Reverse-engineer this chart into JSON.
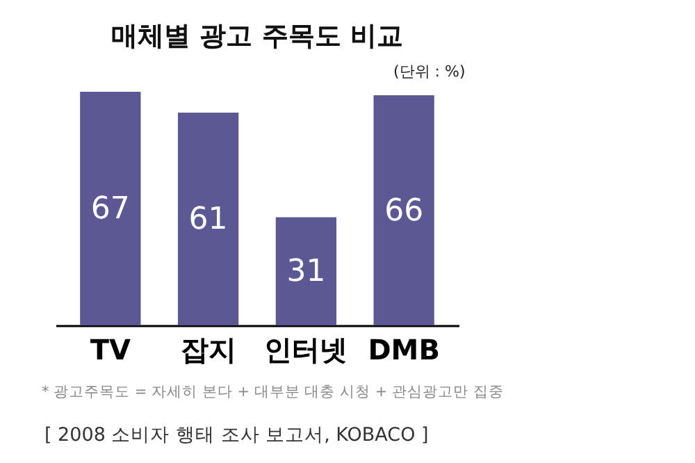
{
  "chart_data": {
    "type": "bar",
    "title": "매체별 광고 주목도 비교",
    "categories": [
      "TV",
      "잡지",
      "인터넷",
      "DMB"
    ],
    "values": [
      67,
      61,
      31,
      66
    ],
    "color": "#5b5893",
    "data_labels": true,
    "annotations": [
      "(단위 : %)",
      "* 광고주목도 = 자세히 본다 + 대부분 대충 시청 + 관심광고만 집중",
      "[ 2008 소비자 행태 조사 보고서, KOBACO ]"
    ]
  }
}
